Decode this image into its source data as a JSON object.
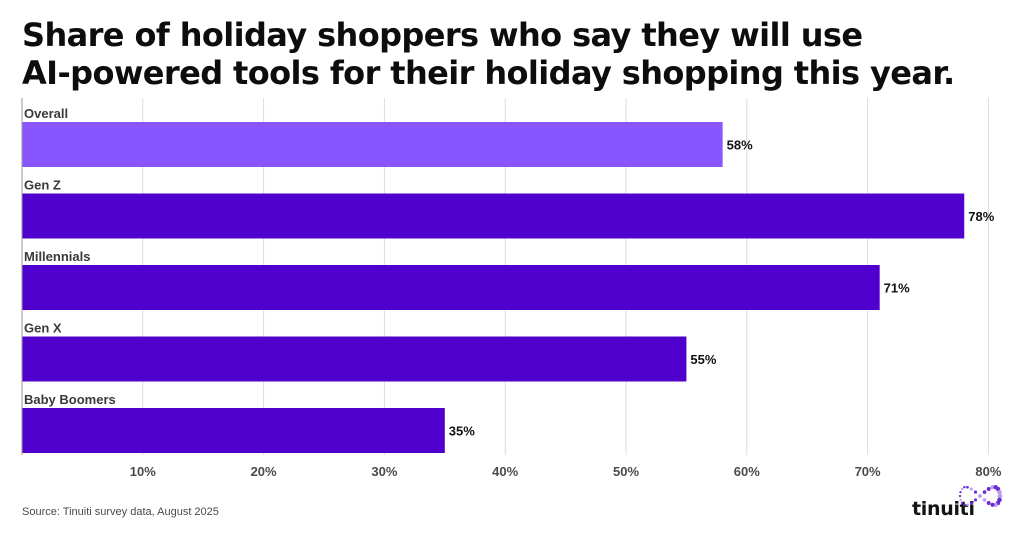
{
  "title_line1": "Share of holiday shoppers who say they will use",
  "title_line2": "AI-powered tools for their holiday shopping this year.",
  "source": "Source: Tinuiti survey data, August 2025",
  "logo_text": "tinuiti",
  "colors": {
    "overall_bar": "#8855ff",
    "generation_bar": "#5000cc",
    "grid": "#dddddd",
    "axis": "#9a9a9a",
    "logo_accent": "#6b2bd9"
  },
  "chart_data": {
    "type": "bar",
    "orientation": "horizontal",
    "categories": [
      "Overall",
      "Gen Z",
      "Millennials",
      "Gen X",
      "Baby Boomers"
    ],
    "values": [
      58,
      78,
      71,
      55,
      35
    ],
    "value_labels": [
      "58%",
      "78%",
      "71%",
      "55%",
      "35%"
    ],
    "xlim": [
      0,
      80
    ],
    "xticks": [
      10,
      20,
      30,
      40,
      50,
      60,
      70,
      80
    ],
    "xtick_labels": [
      "10%",
      "20%",
      "30%",
      "40%",
      "50%",
      "60%",
      "70%",
      "80%"
    ],
    "grid": true,
    "highlight_category": "Overall"
  }
}
